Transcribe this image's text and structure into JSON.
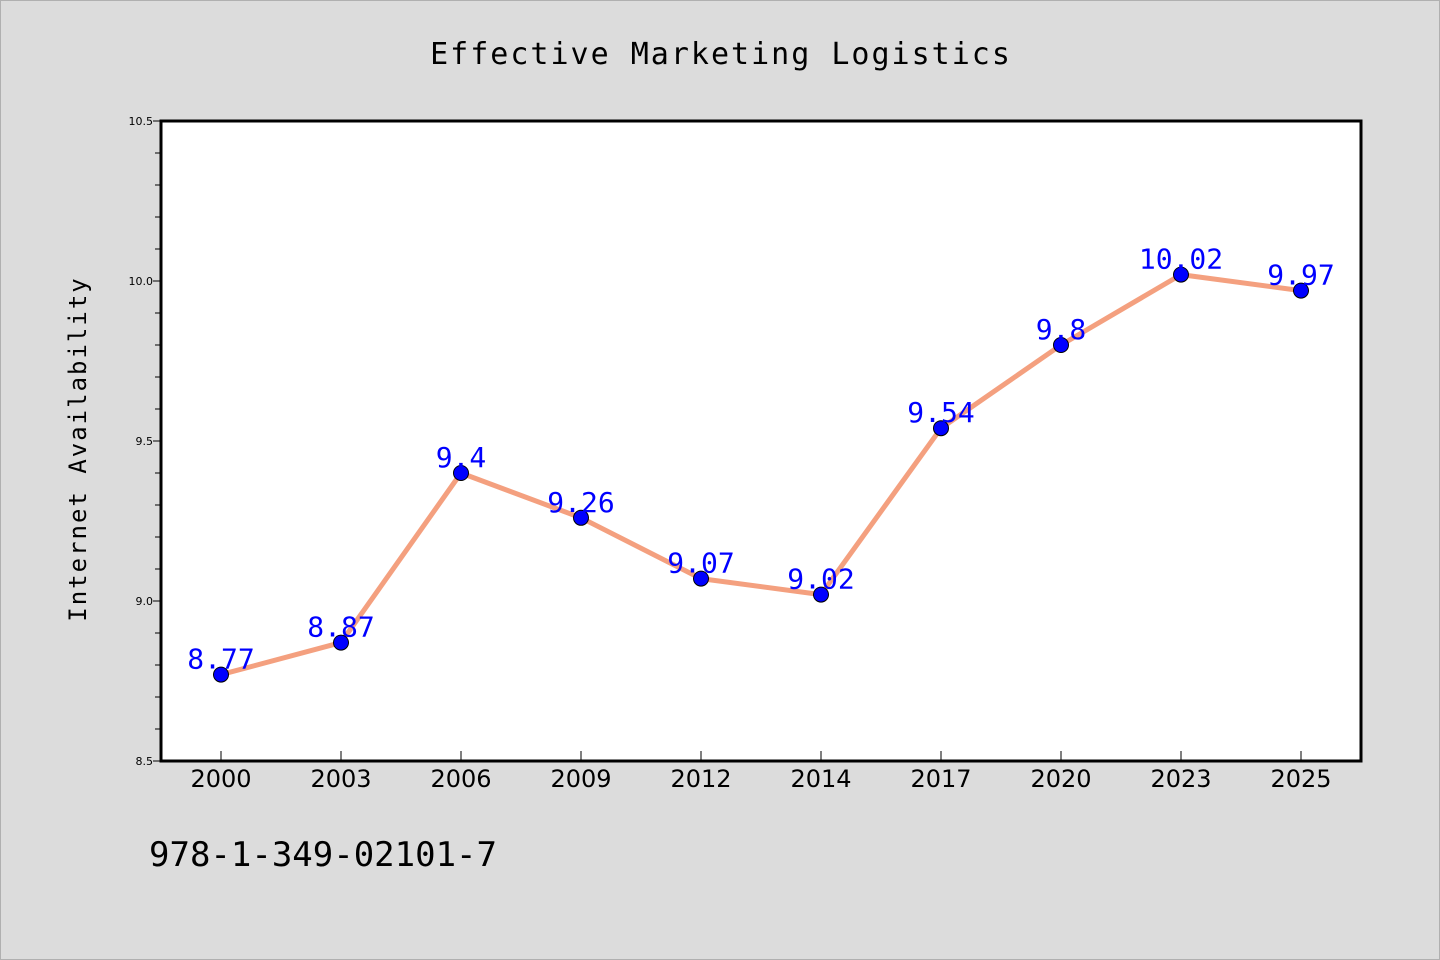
{
  "chart_data": {
    "type": "line",
    "title": "Effective Marketing Logistics",
    "xlabel": "",
    "ylabel": "Internet Availability",
    "categories": [
      "2000",
      "2003",
      "2006",
      "2009",
      "2012",
      "2014",
      "2017",
      "2020",
      "2023",
      "2025"
    ],
    "series": [
      {
        "values": [
          8.77,
          8.87,
          9.4,
          9.26,
          9.07,
          9.02,
          9.54,
          9.8,
          10.02,
          9.97
        ],
        "labels": [
          "8.77",
          "8.87",
          "9.4",
          "9.26",
          "9.07",
          "9.02",
          "9.54",
          "9.8",
          "10.02",
          "9.97"
        ]
      }
    ],
    "ylim": [
      8.5,
      10.5
    ],
    "yticks": [
      "8.5",
      "9.0",
      "9.5",
      "10.0",
      "10.5"
    ],
    "grid": false,
    "colors": {
      "line": "#f4a07f",
      "marker": "#0000ff",
      "label": "#0000ff"
    }
  },
  "footer": {
    "isbn": "978-1-349-02101-7"
  }
}
